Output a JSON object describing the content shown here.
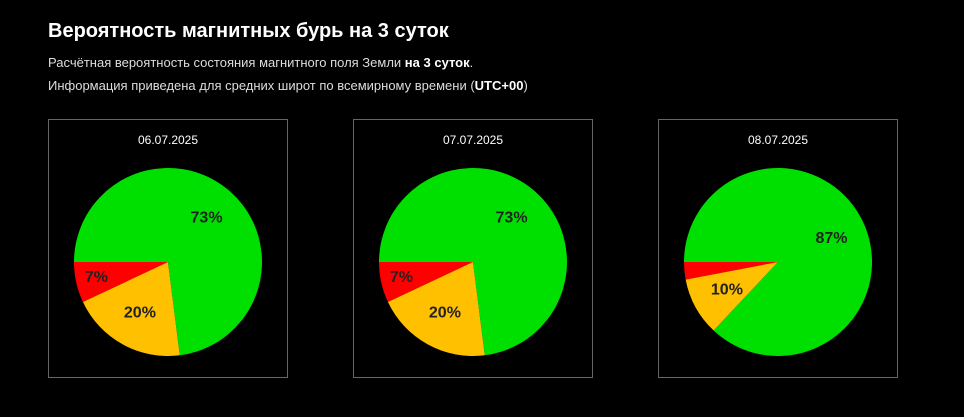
{
  "header": {
    "title": "Вероятность магнитных бурь на 3 суток",
    "line1": [
      "Расчётная вероятность состояния магнитного поля Земли ",
      "на 3 суток",
      "."
    ],
    "line2": [
      "Информация приведена для средних широт по всемирному времени (",
      "UTC+00",
      ")"
    ]
  },
  "chart_data": [
    {
      "type": "pie",
      "title": "06.07.2025",
      "values": [
        7,
        20,
        73
      ],
      "value_labels": [
        "7%",
        "20%",
        "73%"
      ],
      "colors": [
        "#ff0000",
        "#ffc000",
        "#00e000"
      ]
    },
    {
      "type": "pie",
      "title": "07.07.2025",
      "values": [
        7,
        20,
        73
      ],
      "value_labels": [
        "7%",
        "20%",
        "73%"
      ],
      "colors": [
        "#ff0000",
        "#ffc000",
        "#00e000"
      ]
    },
    {
      "type": "pie",
      "title": "08.07.2025",
      "values": [
        3,
        10,
        87
      ],
      "value_labels": [
        null,
        "10%",
        "87%"
      ],
      "colors": [
        "#ff0000",
        "#ffc000",
        "#00e000"
      ]
    }
  ]
}
